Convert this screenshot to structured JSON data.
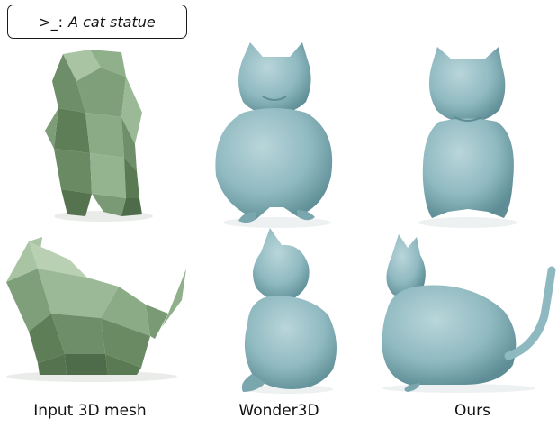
{
  "prompt": {
    "prefix": ">_:",
    "text": "A cat statue"
  },
  "columns": [
    {
      "label": "Input 3D mesh"
    },
    {
      "label": "Wonder3D"
    },
    {
      "label": "Ours"
    }
  ],
  "colors": {
    "mesh_green": "#8fb08a",
    "mesh_green_dark": "#5e7e58",
    "mesh_green_light": "#b9d0b3",
    "result_blue": "#8fb9c0",
    "result_blue_dark": "#5e8d95",
    "result_blue_light": "#b9d6da"
  }
}
